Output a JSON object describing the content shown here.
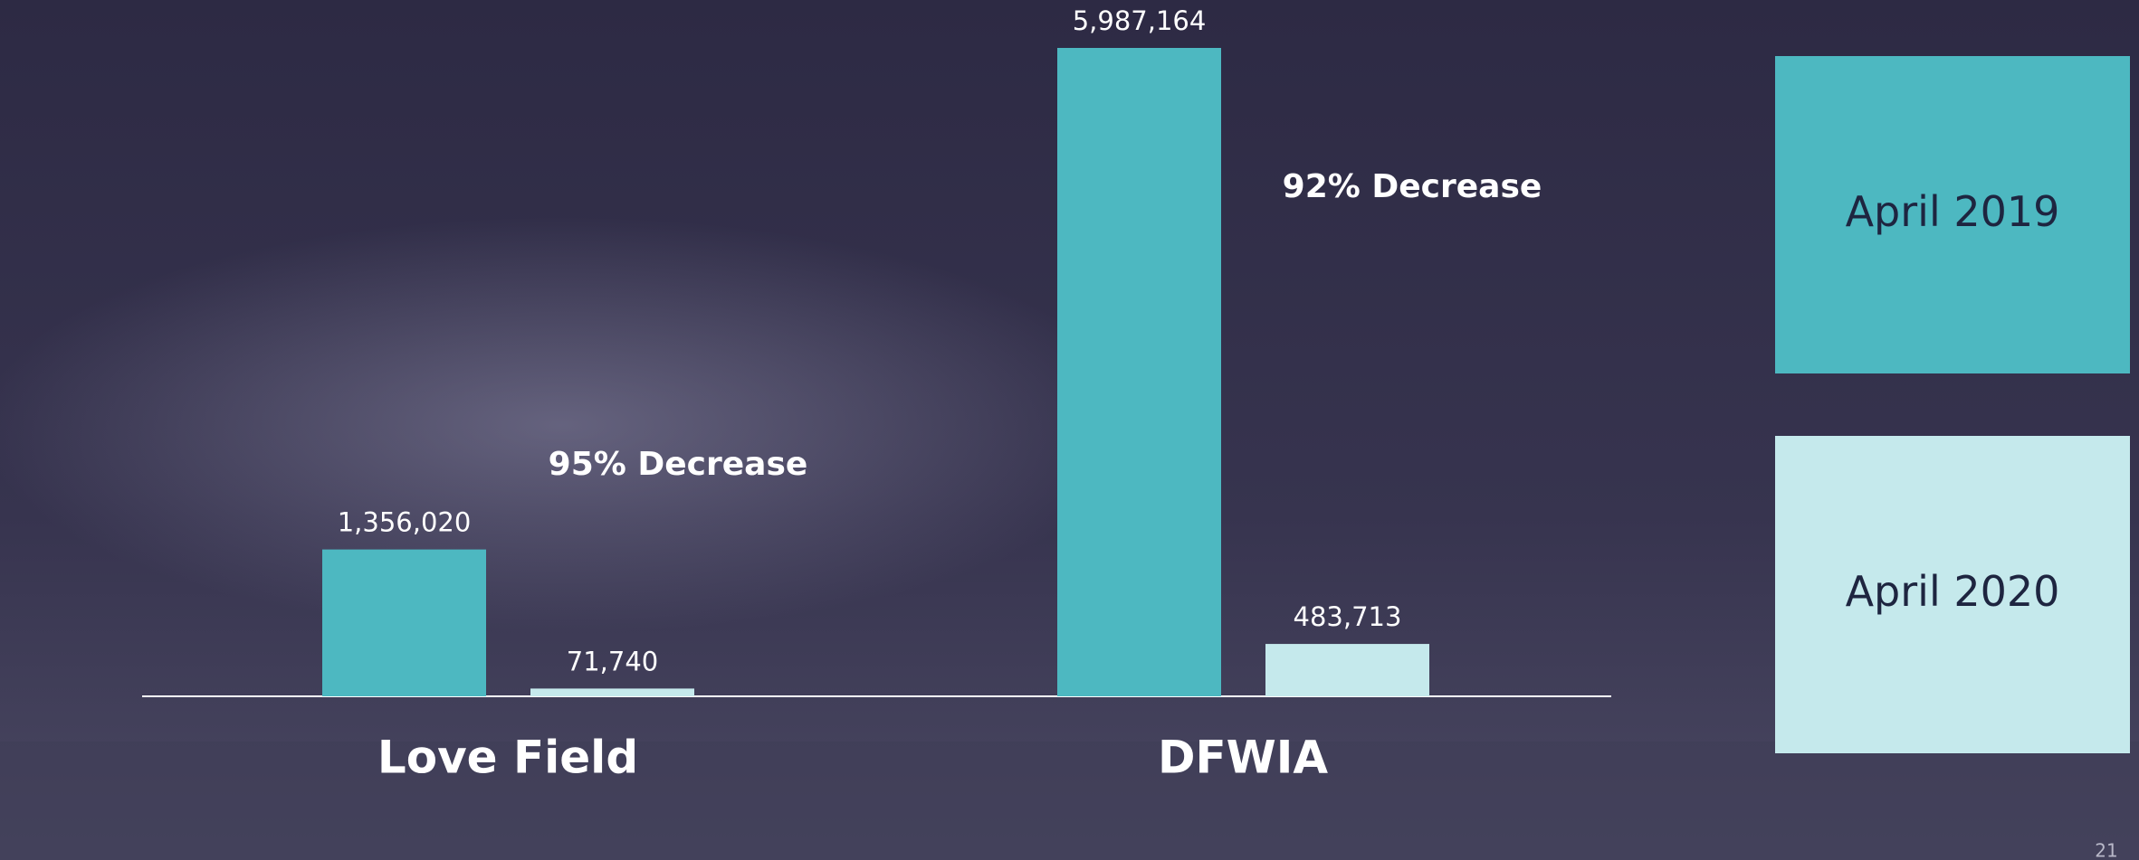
{
  "chart_data": {
    "type": "bar",
    "categories": [
      "Love Field",
      "DFWIA"
    ],
    "series": [
      {
        "name": "April 2019",
        "color": "#4db8c1",
        "values": [
          1356020,
          5987164
        ],
        "value_labels": [
          "1,356,020",
          "5,987,164"
        ]
      },
      {
        "name": "April 2020",
        "color": "#c5e9ec",
        "values": [
          71740,
          483713
        ],
        "value_labels": [
          "71,740",
          "483,713"
        ]
      }
    ],
    "annotations": [
      "95% Decrease",
      "92% Decrease"
    ],
    "legend": "right"
  },
  "page_number": "21"
}
